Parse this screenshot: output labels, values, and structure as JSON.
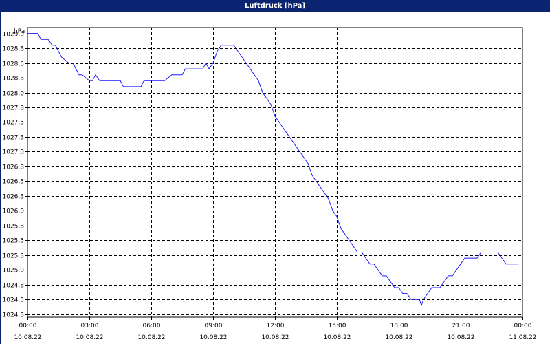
{
  "window": {
    "title": "Luftdruck [hPa]"
  },
  "colors": {
    "title_bar": "#0a2472",
    "series_line": "#1a1aff",
    "grid": "#000000",
    "background": "#ffffff"
  },
  "chart_data": {
    "type": "line",
    "title": "Luftdruck [hPa]",
    "ylabel": "hPa",
    "xlabel": "",
    "ylim": [
      1024.2,
      1029.1
    ],
    "xlim": [
      0,
      24
    ],
    "y_ticks": [
      {
        "value": 1029.0,
        "label": "1029,0"
      },
      {
        "value": 1028.75,
        "label": "1028,8"
      },
      {
        "value": 1028.5,
        "label": "1028,5"
      },
      {
        "value": 1028.25,
        "label": "1028,3"
      },
      {
        "value": 1028.0,
        "label": "1028,0"
      },
      {
        "value": 1027.75,
        "label": "1027,8"
      },
      {
        "value": 1027.5,
        "label": "1027,5"
      },
      {
        "value": 1027.25,
        "label": "1027,3"
      },
      {
        "value": 1027.0,
        "label": "1027,0"
      },
      {
        "value": 1026.75,
        "label": "1026,8"
      },
      {
        "value": 1026.5,
        "label": "1026,5"
      },
      {
        "value": 1026.25,
        "label": "1026,3"
      },
      {
        "value": 1026.0,
        "label": "1026,0"
      },
      {
        "value": 1025.75,
        "label": "1025,8"
      },
      {
        "value": 1025.5,
        "label": "1025,5"
      },
      {
        "value": 1025.25,
        "label": "1025,3"
      },
      {
        "value": 1025.0,
        "label": "1025,0"
      },
      {
        "value": 1024.75,
        "label": "1024,8"
      },
      {
        "value": 1024.5,
        "label": "1024,5"
      },
      {
        "value": 1024.25,
        "label": "1024,3"
      }
    ],
    "x_ticks": [
      {
        "value": 0,
        "time": "00:00",
        "date": "10.08.22"
      },
      {
        "value": 3,
        "time": "03:00",
        "date": "10.08.22"
      },
      {
        "value": 6,
        "time": "06:00",
        "date": "10.08.22"
      },
      {
        "value": 9,
        "time": "09:00",
        "date": "10.08.22"
      },
      {
        "value": 12,
        "time": "12:00",
        "date": "10.08.22"
      },
      {
        "value": 15,
        "time": "15:00",
        "date": "10.08.22"
      },
      {
        "value": 18,
        "time": "18:00",
        "date": "10.08.22"
      },
      {
        "value": 21,
        "time": "21:00",
        "date": "10.08.22"
      },
      {
        "value": 24,
        "time": "00:00",
        "date": "11.08.22"
      }
    ],
    "grid": true,
    "series": [
      {
        "x": [
          0.0,
          0.5,
          0.65,
          1.0,
          1.2,
          1.35,
          1.5,
          1.65,
          2.0,
          2.2,
          2.35,
          2.5,
          2.65,
          3.0,
          3.15,
          3.3,
          3.5,
          4.0,
          4.5,
          4.65,
          5.0,
          5.5,
          5.65,
          6.0,
          6.5,
          6.65,
          7.0,
          7.5,
          7.65,
          8.0,
          8.5,
          8.65,
          8.8,
          9.0,
          9.2,
          9.4,
          10.0,
          10.2,
          10.4,
          10.6,
          10.8,
          11.0,
          11.2,
          11.4,
          11.6,
          11.8,
          12.0,
          12.2,
          12.4,
          12.6,
          12.8,
          13.0,
          13.2,
          13.4,
          13.6,
          13.8,
          14.0,
          14.2,
          14.4,
          14.6,
          14.8,
          15.0,
          15.2,
          15.4,
          15.6,
          15.8,
          16.0,
          16.2,
          16.4,
          16.6,
          16.8,
          17.0,
          17.2,
          17.4,
          17.6,
          17.8,
          18.0,
          18.2,
          18.4,
          18.6,
          18.8,
          19.0,
          19.1,
          19.2,
          19.4,
          19.6,
          19.8,
          20.0,
          20.2,
          20.4,
          20.6,
          20.8,
          21.0,
          21.2,
          21.4,
          21.6,
          21.8,
          22.0,
          22.2,
          22.4,
          22.6,
          22.8,
          23.0,
          23.2,
          23.4,
          23.6,
          23.8
        ],
        "y": [
          1029.0,
          1029.0,
          1028.9,
          1028.9,
          1028.8,
          1028.8,
          1028.7,
          1028.6,
          1028.5,
          1028.5,
          1028.4,
          1028.3,
          1028.3,
          1028.2,
          1028.2,
          1028.3,
          1028.2,
          1028.2,
          1028.2,
          1028.1,
          1028.1,
          1028.1,
          1028.2,
          1028.2,
          1028.2,
          1028.2,
          1028.3,
          1028.3,
          1028.4,
          1028.4,
          1028.4,
          1028.5,
          1028.4,
          1028.5,
          1028.7,
          1028.8,
          1028.8,
          1028.7,
          1028.6,
          1028.5,
          1028.4,
          1028.3,
          1028.2,
          1028.0,
          1027.9,
          1027.8,
          1027.6,
          1027.5,
          1027.4,
          1027.3,
          1027.2,
          1027.1,
          1027.0,
          1026.9,
          1026.8,
          1026.6,
          1026.5,
          1026.4,
          1026.3,
          1026.2,
          1026.0,
          1025.9,
          1025.7,
          1025.6,
          1025.5,
          1025.4,
          1025.3,
          1025.3,
          1025.2,
          1025.1,
          1025.1,
          1025.0,
          1024.9,
          1024.9,
          1024.8,
          1024.7,
          1024.7,
          1024.6,
          1024.6,
          1024.5,
          1024.5,
          1024.5,
          1024.4,
          1024.5,
          1024.6,
          1024.7,
          1024.7,
          1024.7,
          1024.8,
          1024.9,
          1024.9,
          1025.0,
          1025.1,
          1025.2,
          1025.2,
          1025.2,
          1025.2,
          1025.3,
          1025.3,
          1025.3,
          1025.3,
          1025.3,
          1025.2,
          1025.1,
          1025.1,
          1025.1,
          1025.1
        ]
      }
    ]
  }
}
